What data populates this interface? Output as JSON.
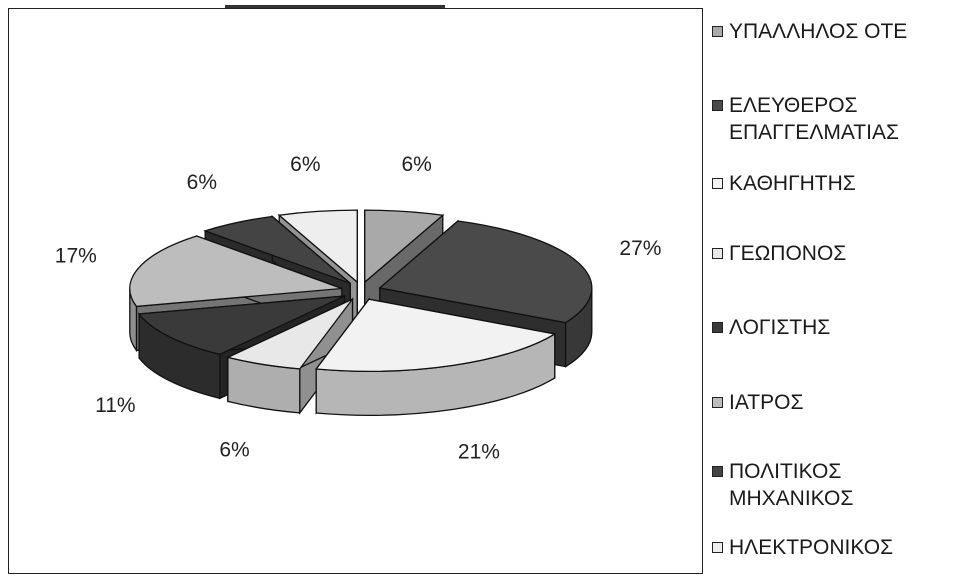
{
  "chart_data": {
    "type": "pie",
    "style": "3d-exploded",
    "title": "",
    "legend_position": "right",
    "slices": [
      {
        "label": "ΥΠΑΛΛΗΛΟΣ ΟΤΕ",
        "value": 6,
        "value_label": "6%",
        "color": "#a9a9a9"
      },
      {
        "label": "ΕΛΕΥΘΕΡΟΣ ΕΠΑΓΓΕΛΜΑΤΙΑΣ",
        "value": 27,
        "value_label": "27%",
        "color": "#4a4a4a"
      },
      {
        "label": "ΚΑΘΗΓΗΤΗΣ",
        "value": 21,
        "value_label": "21%",
        "color": "#f2f2f2"
      },
      {
        "label": "ΓΕΩΠΟΝΟΣ",
        "value": 6,
        "value_label": "6%",
        "color": "#e8e8e8"
      },
      {
        "label": "ΛΟΓΙΣΤΗΣ",
        "value": 11,
        "value_label": "11%",
        "color": "#3a3a3a"
      },
      {
        "label": "ΙΑΤΡΟΣ",
        "value": 17,
        "value_label": "17%",
        "color": "#bdbdbd"
      },
      {
        "label": "ΠΟΛΙΤΙΚΟΣ ΜΗΧΑΝΙΚΟΣ",
        "value": 6,
        "value_label": "6%",
        "color": "#444444"
      },
      {
        "label": "ΗΛΕΚΤΡΟΝΙΚΟΣ",
        "value": 6,
        "value_label": "6%",
        "color": "#eeeeee"
      }
    ]
  },
  "legend": {
    "items": [
      {
        "text": "ΥΠΑΛΛΗΛΟΣ ΟΤΕ",
        "color": "#a9a9a9"
      },
      {
        "text": "ΕΛΕΥΘΕΡΟΣ\nΕΠΑΓΓΕΛΜΑΤΙΑΣ",
        "color": "#4a4a4a"
      },
      {
        "text": "ΚΑΘΗΓΗΤΗΣ",
        "color": "#f2f2f2"
      },
      {
        "text": "ΓΕΩΠΟΝΟΣ",
        "color": "#e8e8e8"
      },
      {
        "text": "ΛΟΓΙΣΤΗΣ",
        "color": "#3a3a3a"
      },
      {
        "text": "ΙΑΤΡΟΣ",
        "color": "#bdbdbd"
      },
      {
        "text": "ΠΟΛΙΤΙΚΟΣ\nΜΗΧΑΝΙΚΟΣ",
        "color": "#444444"
      },
      {
        "text": "ΗΛΕΚΤΡΟΝΙΚΟΣ",
        "color": "#eeeeee"
      }
    ]
  }
}
